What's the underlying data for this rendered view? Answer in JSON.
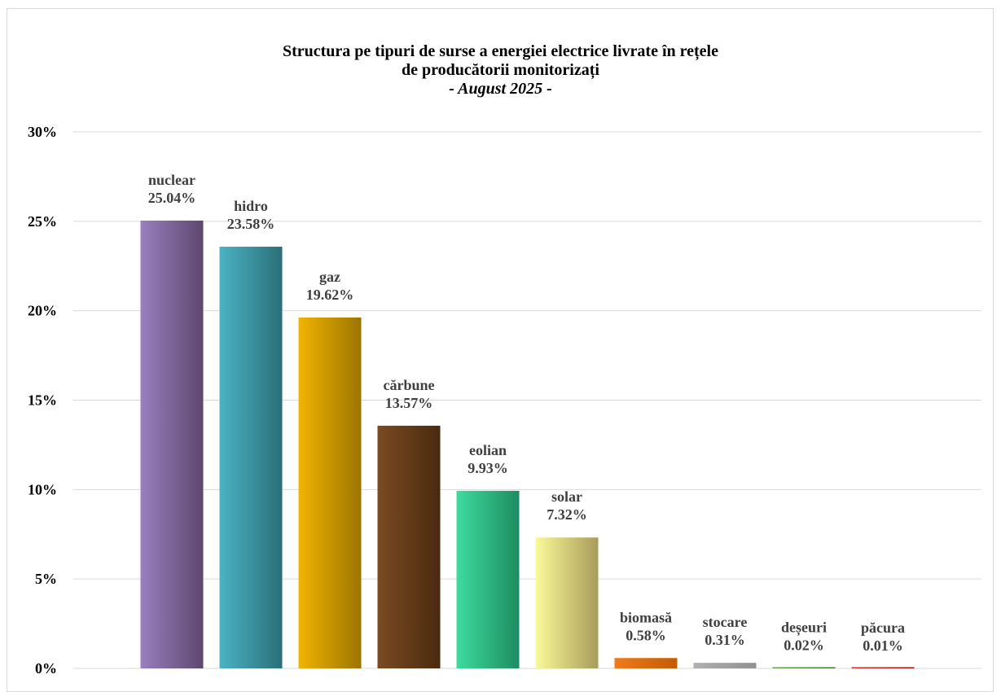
{
  "chart_data": {
    "type": "bar",
    "title_lines": [
      "Structura pe tipuri de surse a energiei electrice livrate în rețele",
      "de producătorii monitorizați"
    ],
    "subtitle": "- August 2025 -",
    "categories": [
      "nuclear",
      "hidro",
      "gaz",
      "cărbune",
      "eolian",
      "solar",
      "biomasă",
      "stocare",
      "deșeuri",
      "păcura"
    ],
    "values": [
      25.04,
      23.58,
      19.62,
      13.57,
      9.93,
      7.32,
      0.58,
      0.31,
      0.02,
      0.01
    ],
    "value_labels": [
      "25.04%",
      "23.58%",
      "19.62%",
      "13.57%",
      "9.93%",
      "7.32%",
      "0.58%",
      "0.31%",
      "0.02%",
      "0.01%"
    ],
    "y_ticks": [
      "0%",
      "5%",
      "10%",
      "15%",
      "20%",
      "25%",
      "30%"
    ],
    "ylim": [
      0,
      30
    ],
    "grid": true,
    "legend": "none",
    "colors": [
      [
        "#9a7fbf",
        "#5e476e"
      ],
      [
        "#4bb3c4",
        "#2a6f78"
      ],
      [
        "#f2b400",
        "#9c7400"
      ],
      [
        "#7a4b22",
        "#4a2a0f"
      ],
      [
        "#3ddc9e",
        "#1e8c60"
      ],
      [
        "#fafa99",
        "#a89c5a"
      ],
      [
        "#f07b1a",
        "#c25b05"
      ],
      [
        "#b0b0b0",
        "#909090"
      ],
      [
        "#6aa84f",
        "#3d7a2a"
      ],
      [
        "#e03030",
        "#b01010"
      ]
    ]
  }
}
